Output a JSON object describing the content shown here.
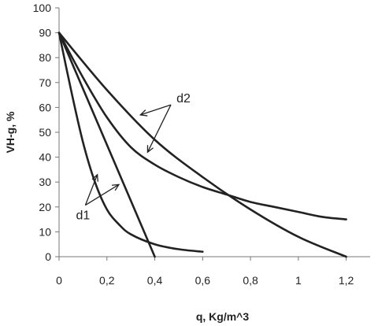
{
  "chart_data": {
    "type": "line",
    "title": "",
    "xlabel": "q, Kg/m^3",
    "ylabel": "VH-g, %",
    "xlim": [
      0,
      1.3
    ],
    "ylim": [
      0,
      100
    ],
    "x_ticks": [
      0,
      0.2,
      0.4,
      0.6,
      0.8,
      1.0,
      1.2
    ],
    "x_tick_labels": [
      "0",
      "0,2",
      "0,4",
      "0,6",
      "0,8",
      "1",
      "1,2"
    ],
    "y_ticks": [
      0,
      10,
      20,
      30,
      40,
      50,
      60,
      70,
      80,
      90,
      100
    ],
    "y_tick_labels": [
      "0",
      "10",
      "20",
      "30",
      "40",
      "50",
      "60",
      "70",
      "80",
      "90",
      "100"
    ],
    "grid": false,
    "series": [
      {
        "name": "d1",
        "x": [
          0,
          0.4
        ],
        "y": [
          90,
          0
        ]
      },
      {
        "name": "d1",
        "x": [
          0,
          0.05,
          0.1,
          0.15,
          0.2,
          0.25,
          0.3,
          0.4,
          0.5,
          0.6
        ],
        "y": [
          90,
          67,
          46,
          30,
          19,
          13,
          9,
          5,
          3,
          2
        ]
      },
      {
        "name": "d2",
        "x": [
          0,
          0.2,
          0.4,
          0.6,
          0.8,
          1.0,
          1.2
        ],
        "y": [
          90,
          67,
          47,
          32,
          19,
          8,
          0
        ]
      },
      {
        "name": "d2",
        "x": [
          0,
          0.1,
          0.2,
          0.3,
          0.4,
          0.5,
          0.6,
          0.7,
          0.8,
          0.9,
          1.0,
          1.1,
          1.2
        ],
        "y": [
          90,
          72,
          56,
          44,
          37,
          32,
          28,
          25,
          22,
          20,
          18,
          16,
          15
        ]
      }
    ],
    "annotations": [
      {
        "text": "d1",
        "x": 0.1,
        "y": 15,
        "targets": [
          [
            0.16,
            33
          ],
          [
            0.25,
            29
          ]
        ]
      },
      {
        "text": "d2",
        "x": 0.52,
        "y": 62,
        "targets": [
          [
            0.34,
            57
          ],
          [
            0.37,
            42
          ]
        ]
      }
    ]
  }
}
